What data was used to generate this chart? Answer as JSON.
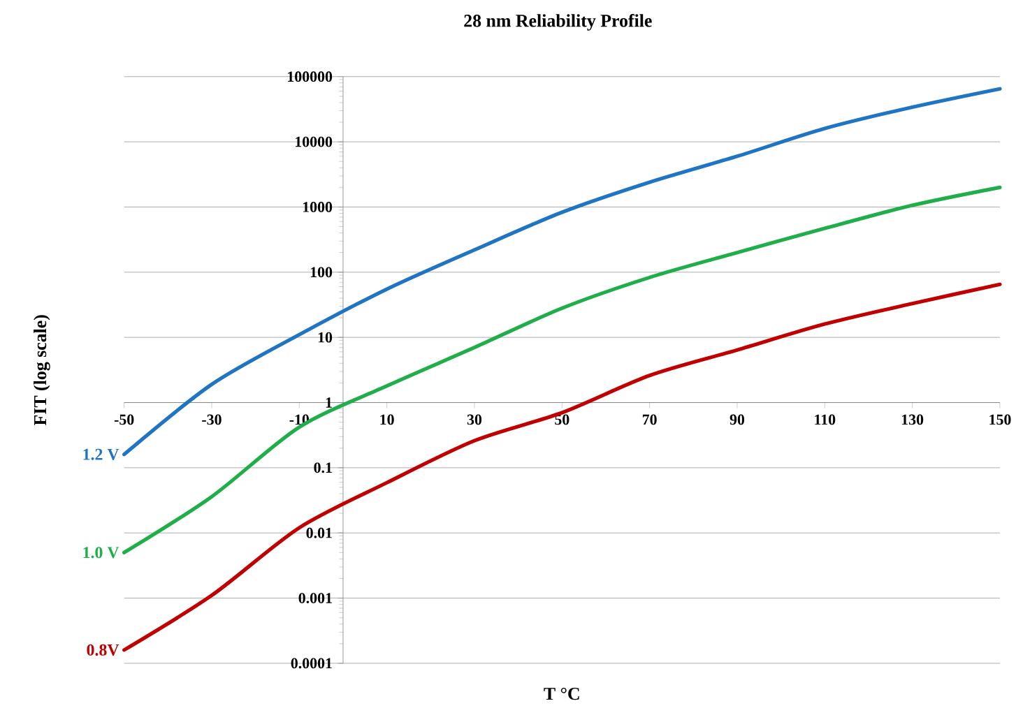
{
  "chart_data": {
    "type": "line",
    "title": "28 nm Reliability Profile",
    "xlabel": "T °C",
    "ylabel": "FIT (log scale)",
    "log": "y",
    "grid": "y",
    "x": [
      -50,
      -30,
      -10,
      10,
      30,
      50,
      70,
      90,
      110,
      130,
      150
    ],
    "xlim": [
      -50,
      150
    ],
    "xticks": [
      -50,
      -30,
      -10,
      10,
      30,
      50,
      70,
      90,
      110,
      130,
      150
    ],
    "ylim": [
      0.0001,
      100000
    ],
    "yticks": [
      0.0001,
      0.001,
      0.01,
      0.1,
      1,
      10,
      100,
      1000,
      10000,
      100000
    ],
    "series": [
      {
        "name": "1.2 V",
        "color": "#1f74c4",
        "values": [
          0.16,
          1.9,
          11,
          55,
          220,
          830,
          2400,
          6000,
          16000,
          34000,
          65000
        ]
      },
      {
        "name": "1.0 V",
        "color": "#1fae4a",
        "values": [
          0.005,
          0.036,
          0.42,
          1.8,
          7,
          28,
          83,
          200,
          470,
          1060,
          2000
        ]
      },
      {
        "name": "0.8V",
        "color": "#c00000",
        "values": [
          0.00016,
          0.0011,
          0.012,
          0.059,
          0.26,
          0.7,
          2.6,
          6.4,
          16,
          33,
          65
        ]
      }
    ]
  }
}
